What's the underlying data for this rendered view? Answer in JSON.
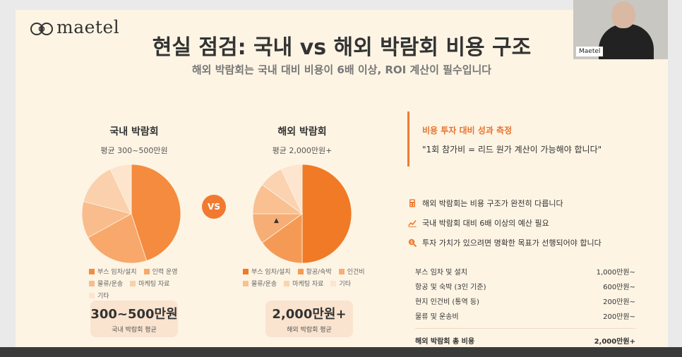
{
  "brand": {
    "name": "maetel"
  },
  "title": "현실 점검: 국내 vs 해외 박람회 비용 구조",
  "subtitle": "해외 박람회는 국내 대비 비용이 6배 이상, ROI 계산이 필수입니다",
  "colors": {
    "accent": "#f07a30",
    "slide_bg": "#fdf4e4",
    "summary_bg": "#fae4cf"
  },
  "vs_label": "VS",
  "domestic": {
    "title": "국내 박람회",
    "subtitle": "평균 300~500만원",
    "summary_value": "300~500만원",
    "summary_label": "국내 박람회 평균",
    "chart_data": {
      "type": "pie",
      "labels": [
        "부스 임차/설치",
        "인력 운영",
        "물류/운송",
        "마케팅 자료",
        "기타"
      ],
      "values": [
        45,
        22,
        12,
        14,
        7
      ],
      "colors": [
        "#f48b3f",
        "#f7a86a",
        "#f9bc8c",
        "#fbd0ad",
        "#fde4cd"
      ]
    }
  },
  "overseas": {
    "title": "해외 박람회",
    "subtitle": "평균 2,000만원+",
    "summary_value": "2,000만원+",
    "summary_label": "해외 박람회 평균",
    "chart_data": {
      "type": "pie",
      "labels": [
        "부스 임차/설치",
        "항공/숙박",
        "인건비",
        "물류/운송",
        "마케팅 자료",
        "기타"
      ],
      "values": [
        50,
        15,
        10,
        10,
        8,
        7
      ],
      "colors": [
        "#f07a26",
        "#f59a55",
        "#f7ae76",
        "#f9c092",
        "#fbd3b1",
        "#fde5cf"
      ]
    }
  },
  "callout": {
    "heading": "비용 투자 대비 성과 측정",
    "quote": "\"1회 참가비 = 리드 원가 계산이 가능해야 합니다\""
  },
  "bullets": [
    {
      "icon": "calculator-icon",
      "text": "해외 박람회는 비용 구조가 완전히 다릅니다"
    },
    {
      "icon": "trend-chart-icon",
      "text": "국내 박람회 대비 6배 이상의 예산 필요"
    },
    {
      "icon": "search-dollar-icon",
      "text": "투자 가치가 있으려면 명확한 목표가 선행되어야 합니다"
    }
  ],
  "cost_rows": [
    {
      "label": "부스 임차 및 설치",
      "value": "1,000만원~"
    },
    {
      "label": "항공 및 숙박 (3인 기준)",
      "value": "600만원~"
    },
    {
      "label": "현지 인건비 (통역 등)",
      "value": "200만원~"
    },
    {
      "label": "물류 및 운송비",
      "value": "200만원~"
    }
  ],
  "cost_total": {
    "label": "해외 박람회 총 비용",
    "value": "2,000만원+"
  },
  "webcam": {
    "name": "Maetel"
  }
}
